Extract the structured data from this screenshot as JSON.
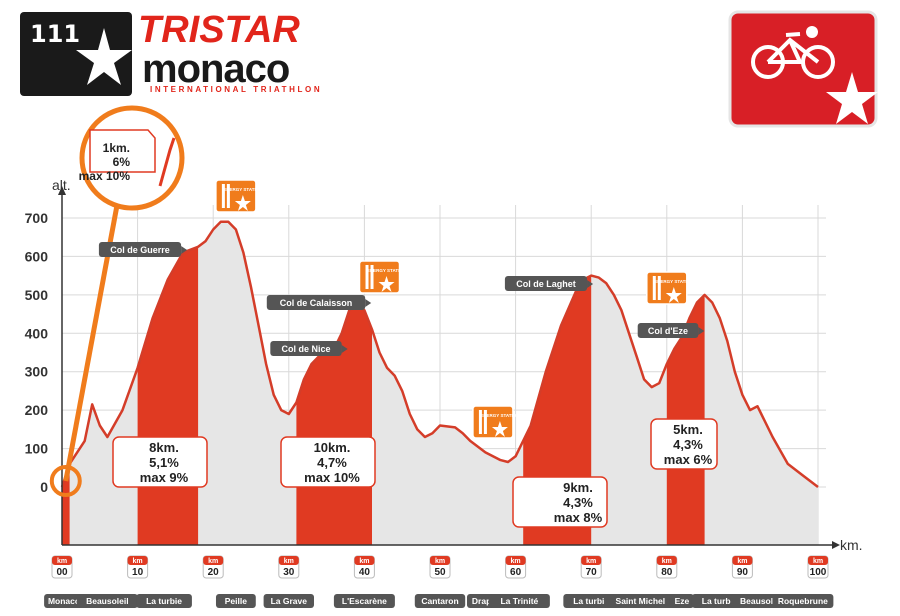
{
  "brand": {
    "number": "111",
    "name_top": "TRISTAR",
    "name_bottom": "monaco",
    "tagline": "INTERNATIONAL TRIATHLON",
    "icon": "cycling-icon",
    "accent": "#e1251b",
    "dark": "#1a1a1a"
  },
  "chart_data": {
    "type": "area",
    "ylabel": "alt.",
    "xlabel": "km.",
    "xlim": [
      0,
      100
    ],
    "ylim": [
      0,
      700
    ],
    "yticks": [
      0,
      100,
      200,
      300,
      400,
      500,
      600,
      700
    ],
    "xticks": [
      0,
      10,
      20,
      30,
      40,
      50,
      60,
      70,
      80,
      90,
      100
    ],
    "xtick_badge_unit": "km",
    "xtick_labels": [
      "00",
      "10",
      "20",
      "30",
      "40",
      "50",
      "60",
      "70",
      "80",
      "90",
      "100"
    ],
    "profile": {
      "x": [
        0,
        1,
        3,
        4,
        5,
        6,
        8,
        10,
        12,
        14,
        16,
        18,
        19,
        20,
        21,
        22,
        23,
        24,
        25,
        26,
        27,
        28,
        29,
        30,
        31,
        32,
        33,
        34,
        36,
        37,
        38,
        39,
        40,
        41,
        42,
        43,
        44,
        45,
        46,
        47,
        48,
        49,
        50,
        52,
        53,
        54,
        56,
        58,
        59,
        60,
        62,
        64,
        66,
        68,
        69,
        70,
        71,
        72,
        73,
        74,
        75,
        76,
        77,
        78,
        79,
        80,
        81,
        82,
        83,
        84,
        85,
        86,
        87,
        88,
        89,
        90,
        91,
        92,
        94,
        96,
        98,
        100
      ],
      "y": [
        0,
        60,
        120,
        215,
        160,
        130,
        200,
        310,
        440,
        540,
        610,
        625,
        640,
        670,
        690,
        690,
        670,
        610,
        520,
        420,
        320,
        240,
        200,
        190,
        220,
        280,
        320,
        340,
        360,
        400,
        460,
        480,
        460,
        410,
        350,
        310,
        290,
        250,
        190,
        150,
        130,
        140,
        160,
        155,
        140,
        120,
        90,
        70,
        65,
        80,
        160,
        300,
        420,
        510,
        540,
        550,
        545,
        530,
        500,
        460,
        400,
        340,
        280,
        260,
        270,
        320,
        360,
        390,
        440,
        480,
        500,
        480,
        440,
        380,
        300,
        240,
        200,
        210,
        130,
        60,
        30,
        0
      ]
    },
    "climbs": [
      {
        "from": 0,
        "to": 1,
        "text": [
          "1km.",
          "6%",
          "max 10%"
        ]
      },
      {
        "from": 10,
        "to": 18,
        "text": [
          "8km.",
          "5,1%",
          "max 9%"
        ]
      },
      {
        "from": 31,
        "to": 41,
        "text": [
          "10km.",
          "4,7%",
          "max 10%"
        ]
      },
      {
        "from": 61,
        "to": 70,
        "text": [
          "9km.",
          "4,3%",
          "max 8%"
        ]
      },
      {
        "from": 80,
        "to": 85,
        "text": [
          "5km.",
          "4,3%",
          "max 6%"
        ]
      }
    ],
    "cols": [
      {
        "name": "Col de Guerre",
        "x": 18,
        "alt": 625
      },
      {
        "name": "Col de Calaisson",
        "x": 40,
        "alt": 480
      },
      {
        "name": "Col de Nice",
        "x": 36,
        "alt": 360
      },
      {
        "name": "Col de Laghet",
        "x": 70,
        "alt": 550
      },
      {
        "name": "Col d'Eze",
        "x": 84,
        "alt": 450
      }
    ],
    "energy_stations": [
      {
        "x": 23,
        "label": "ENERGY STATION"
      },
      {
        "x": 42,
        "label": "ENERGY STATION"
      },
      {
        "x": 57,
        "label": "ENERGY STATION"
      },
      {
        "x": 80,
        "label": "ENERGY STATION"
      }
    ],
    "places": [
      {
        "name": "Monaco",
        "x": 0
      },
      {
        "name": "Beausoleil",
        "x": 6
      },
      {
        "name": "La turbie",
        "x": 13.5
      },
      {
        "name": "Peille",
        "x": 23
      },
      {
        "name": "La Grave",
        "x": 30
      },
      {
        "name": "L'Escarène",
        "x": 40
      },
      {
        "name": "Cantaron",
        "x": 50
      },
      {
        "name": "Drap",
        "x": 55.5
      },
      {
        "name": "La Trinité",
        "x": 60.5
      },
      {
        "name": "La turbie",
        "x": 70
      },
      {
        "name": "Saint Michel",
        "x": 76.5
      },
      {
        "name": "Eze",
        "x": 82
      },
      {
        "name": "La turbie",
        "x": 87
      },
      {
        "name": "Beausoleil",
        "x": 92.5
      },
      {
        "name": "Roquebrune",
        "x": 98
      }
    ],
    "colors": {
      "profile_fill": "#e6e6e6",
      "profile_line": "#d43d29",
      "climb_fill": "#e03a22",
      "energy_fill": "#f07c1c",
      "label_bg": "#555555",
      "axis": "#333333",
      "grid": "#d9d9d9"
    }
  }
}
